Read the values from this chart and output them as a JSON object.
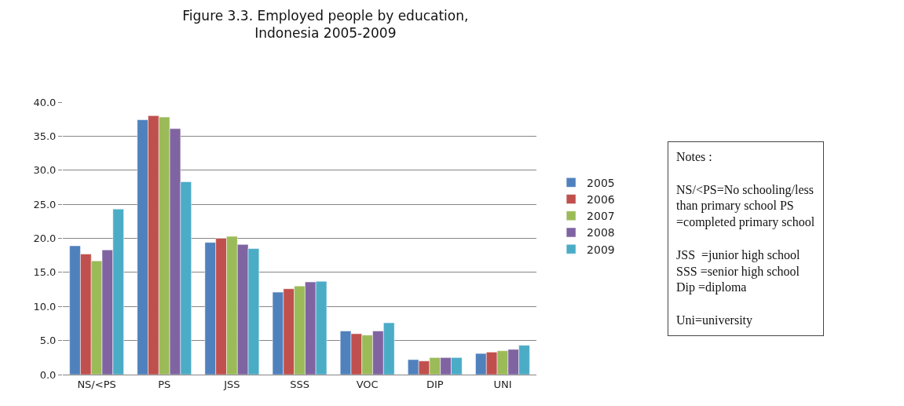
{
  "chart_data": {
    "type": "bar",
    "title": "Figure 3.3. Employed people by education,\nIndonesia 2005-2009",
    "categories": [
      "NS/<PS",
      "PS",
      "JSS",
      "SSS",
      "VOC",
      "DIP",
      "UNI"
    ],
    "series": [
      {
        "name": "2005",
        "color": "#4f81bd",
        "values": [
          18.9,
          37.4,
          19.4,
          12.1,
          6.4,
          2.2,
          3.1
        ]
      },
      {
        "name": "2006",
        "color": "#c0504d",
        "values": [
          17.7,
          38.0,
          20.0,
          12.6,
          6.0,
          2.0,
          3.3
        ]
      },
      {
        "name": "2007",
        "color": "#9bbb59",
        "values": [
          16.7,
          37.8,
          20.3,
          13.0,
          5.8,
          2.5,
          3.5
        ]
      },
      {
        "name": "2008",
        "color": "#8064a2",
        "values": [
          18.3,
          36.1,
          19.1,
          13.6,
          6.4,
          2.5,
          3.7
        ]
      },
      {
        "name": "2009",
        "color": "#4bacc6",
        "values": [
          24.3,
          28.3,
          18.5,
          13.7,
          7.6,
          2.5,
          4.3
        ]
      }
    ],
    "ylim": [
      0,
      40
    ],
    "yticks": [
      {
        "value": 0,
        "label": "0.0"
      },
      {
        "value": 5,
        "label": "5.0"
      },
      {
        "value": 10,
        "label": "10.0"
      },
      {
        "value": 15,
        "label": "15.0"
      },
      {
        "value": 20,
        "label": "20.0"
      },
      {
        "value": 25,
        "label": "25.0"
      },
      {
        "value": 30,
        "label": "30.0"
      },
      {
        "value": 35,
        "label": "35.0"
      },
      {
        "value": 40,
        "label": "40.0"
      }
    ],
    "grid": "y",
    "legend": "right",
    "annotations": [
      "Notes :\n\nNS/<PS=No schooling/less\nthan primary school PS\n=completed primary school\n\nJSS  =junior high school\nSSS =senior high school\nDip =diploma\n\nUni=university"
    ]
  }
}
